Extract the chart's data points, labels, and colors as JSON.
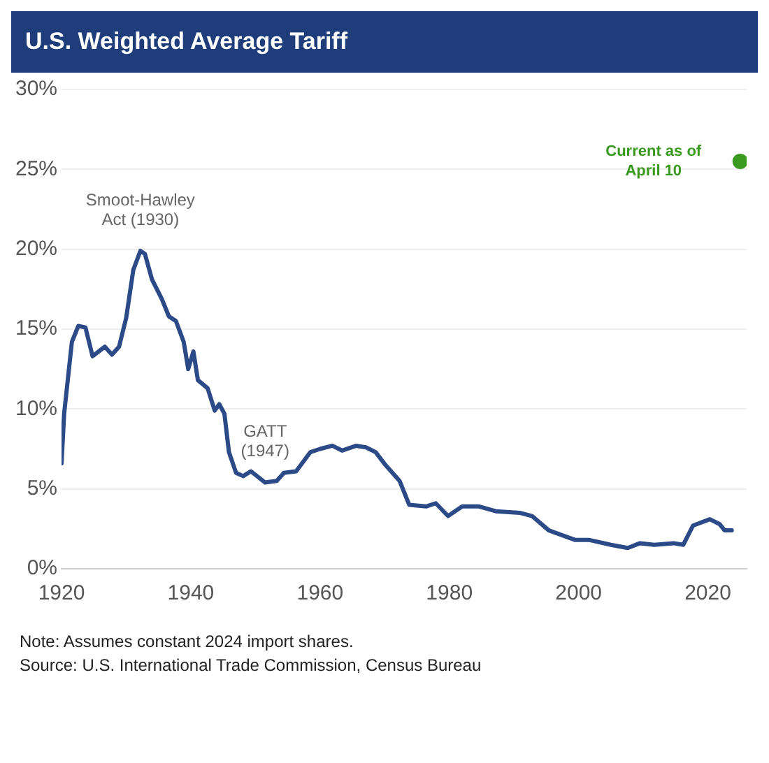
{
  "chart_data": {
    "type": "line",
    "title": "U.S. Weighted Average Tariff",
    "xlim": [
      1920,
      2026
    ],
    "xticks": [
      1920,
      1940,
      1960,
      1980,
      2000,
      2020
    ],
    "ylim": [
      0,
      30
    ],
    "yticks": [
      {
        "value": 0,
        "label": "0%"
      },
      {
        "value": 5,
        "label": "5%"
      },
      {
        "value": 10,
        "label": "10%"
      },
      {
        "value": 15,
        "label": "15%"
      },
      {
        "value": 20,
        "label": "20%"
      },
      {
        "value": 25,
        "label": "25%"
      },
      {
        "value": 30,
        "label": "30%"
      }
    ],
    "grid": "y",
    "legend": false,
    "marker": "none",
    "line_style": "solid",
    "series": [
      {
        "color": "#2b4a87",
        "x": [
          1920.0,
          1920.4,
          1921.6,
          1922.6,
          1923.7,
          1924.8,
          1926.7,
          1927.8,
          1928.9,
          1930.0,
          1931.1,
          1932.2,
          1932.9,
          1934.0,
          1935.5,
          1936.6,
          1937.7,
          1938.9,
          1939.6,
          1940.4,
          1941.1,
          1942.6,
          1943.7,
          1944.4,
          1945.2,
          1945.9,
          1947.0,
          1948.1,
          1949.3,
          1951.5,
          1953.3,
          1954.4,
          1956.3,
          1958.5,
          1960.0,
          1961.9,
          1963.4,
          1965.6,
          1967.1,
          1968.6,
          1970.1,
          1972.3,
          1973.8,
          1976.4,
          1977.9,
          1979.8,
          1982.0,
          1984.6,
          1987.2,
          1990.9,
          1992.8,
          1995.4,
          1999.5,
          2001.7,
          2005.0,
          2007.6,
          2009.5,
          2011.7,
          2014.7,
          2016.2,
          2017.7,
          2020.3,
          2021.8,
          2022.6,
          2023.7
        ],
        "values": [
          6.6,
          9.7,
          14.2,
          15.2,
          15.1,
          13.3,
          13.9,
          13.4,
          13.9,
          15.7,
          18.7,
          19.9,
          19.7,
          18.1,
          16.9,
          15.8,
          15.5,
          14.2,
          12.5,
          13.6,
          11.8,
          11.3,
          9.9,
          10.3,
          9.7,
          7.3,
          6.0,
          5.8,
          6.1,
          5.4,
          5.5,
          6.0,
          6.1,
          7.3,
          7.5,
          7.7,
          7.4,
          7.7,
          7.6,
          7.3,
          6.5,
          5.5,
          4.0,
          3.9,
          4.1,
          3.3,
          3.9,
          3.9,
          3.6,
          3.5,
          3.3,
          2.4,
          1.8,
          1.8,
          1.5,
          1.3,
          1.6,
          1.5,
          1.6,
          1.5,
          2.7,
          3.1,
          2.8,
          2.4,
          2.4
        ]
      },
      {
        "type": "scatter",
        "name": "Current as of\nApril 10",
        "color": "#3a9a1f",
        "marker": "circle",
        "x": [
          2025
        ],
        "values": [
          25.5
        ]
      }
    ],
    "annotations": [
      {
        "text": "Smoot-Hawley\nAct (1930)",
        "x": 1932.2,
        "y": 19.9
      },
      {
        "text": "GATT\n(1947)",
        "x": 1951.5,
        "y": 5.4
      },
      "Note: Assumes constant 2024 import shares.",
      "Source: U.S. International Trade Commission, Census Bureau"
    ]
  }
}
